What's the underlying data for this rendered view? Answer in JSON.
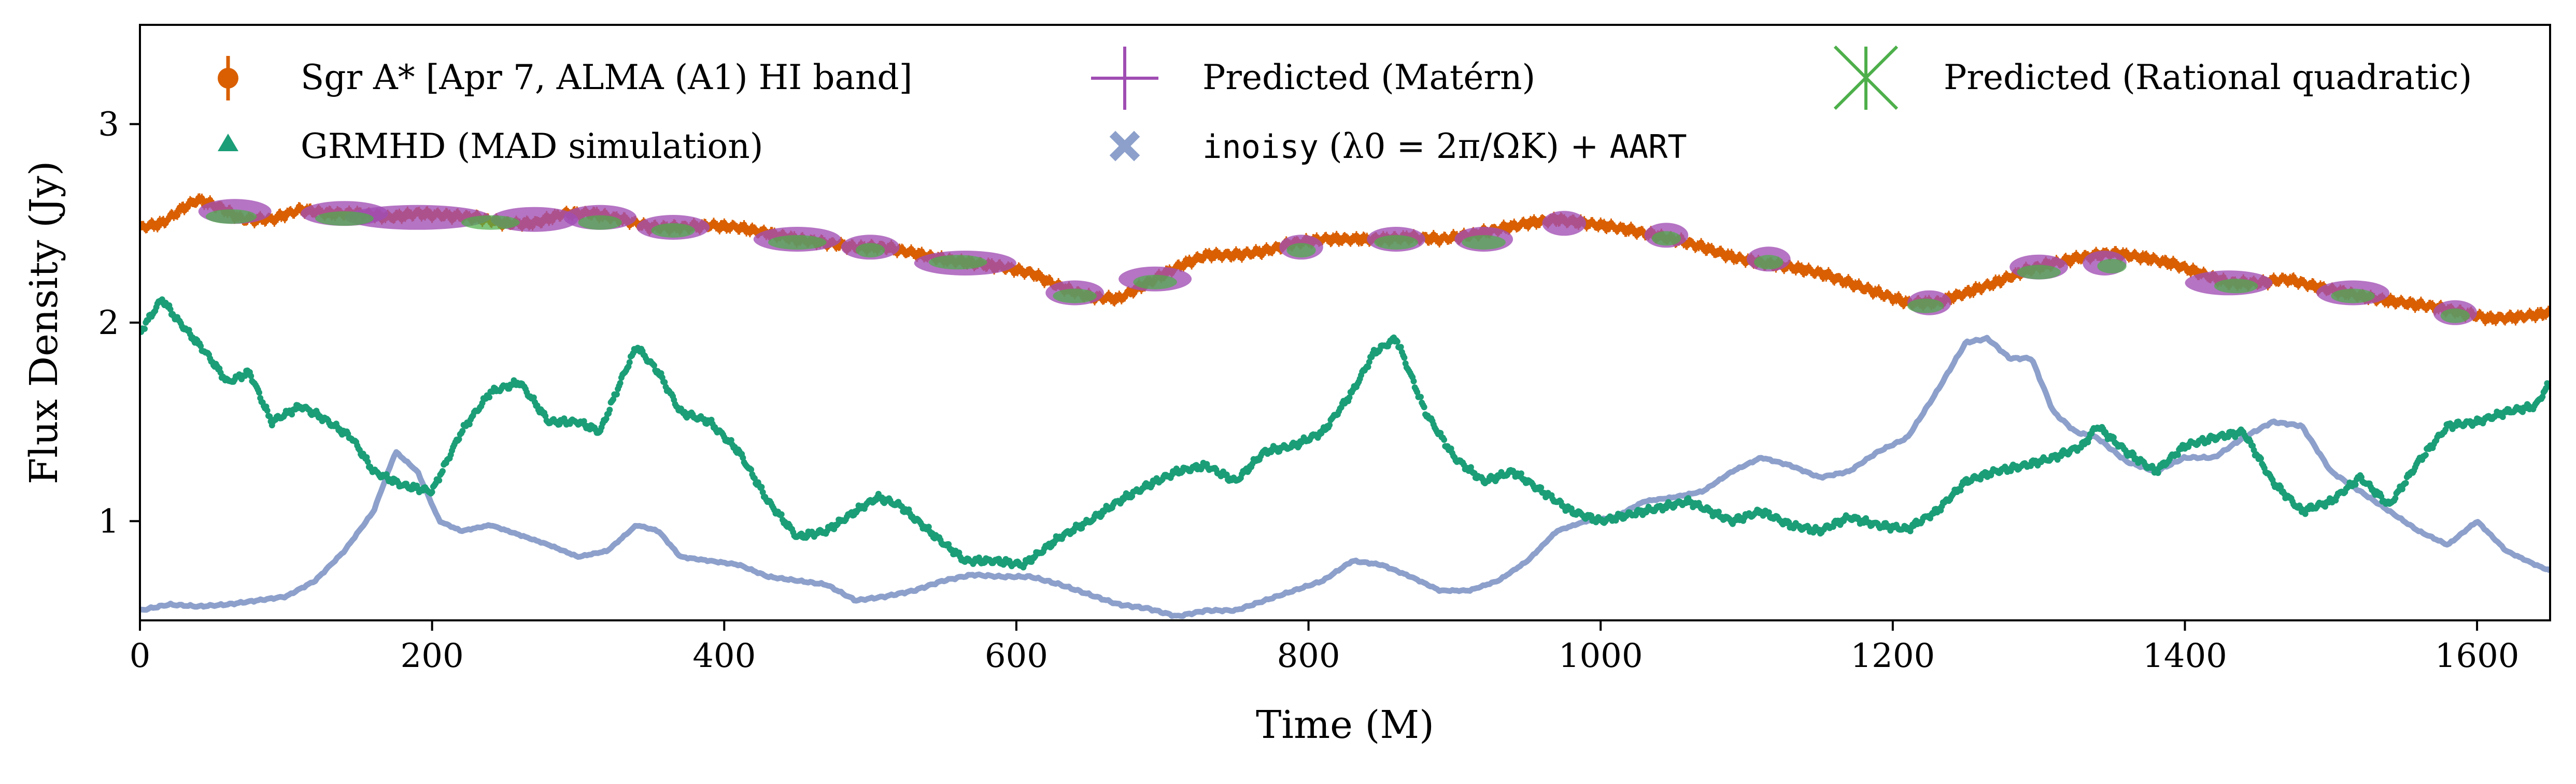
{
  "chart_data": {
    "type": "line",
    "xlabel": "Time (M)",
    "ylabel": "Flux Density (Jy)",
    "xlim": [
      0,
      1650
    ],
    "ylim": [
      0.5,
      3.5
    ],
    "xticks": [
      0,
      200,
      400,
      600,
      800,
      1000,
      1200,
      1400,
      1600
    ],
    "yticks": [
      1,
      2,
      3
    ],
    "grid": false,
    "legend_position": "top",
    "colors": {
      "sgra": "#d95f02",
      "grmhd": "#1b9e77",
      "inoisy": "#8da0cb",
      "matern": "#a04db3",
      "rq": "#4daf4a"
    },
    "series": [
      {
        "name": "Sgr A* [Apr 7, ALMA (A1) HI band]",
        "style": "errorbar-points",
        "x": [
          0,
          15,
          30,
          40,
          55,
          70,
          90,
          110,
          130,
          150,
          170,
          190,
          210,
          230,
          250,
          270,
          290,
          310,
          330,
          350,
          370,
          390,
          410,
          430,
          450,
          470,
          490,
          510,
          530,
          550,
          570,
          590,
          610,
          630,
          650,
          670,
          690,
          710,
          730,
          750,
          770,
          790,
          810,
          830,
          850,
          870,
          890,
          910,
          930,
          950,
          970,
          990,
          1010,
          1030,
          1050,
          1070,
          1090,
          1110,
          1130,
          1150,
          1170,
          1190,
          1210,
          1230,
          1250,
          1270,
          1290,
          1310,
          1330,
          1350,
          1370,
          1390,
          1410,
          1430,
          1450,
          1470,
          1490,
          1510,
          1530,
          1550,
          1570,
          1590,
          1610,
          1630,
          1650
        ],
        "y": [
          2.48,
          2.5,
          2.58,
          2.62,
          2.58,
          2.52,
          2.52,
          2.57,
          2.55,
          2.55,
          2.53,
          2.55,
          2.54,
          2.53,
          2.5,
          2.5,
          2.55,
          2.55,
          2.52,
          2.48,
          2.48,
          2.49,
          2.48,
          2.45,
          2.42,
          2.4,
          2.38,
          2.38,
          2.35,
          2.32,
          2.3,
          2.28,
          2.25,
          2.18,
          2.13,
          2.12,
          2.2,
          2.28,
          2.34,
          2.34,
          2.36,
          2.4,
          2.42,
          2.42,
          2.42,
          2.43,
          2.42,
          2.44,
          2.47,
          2.5,
          2.52,
          2.5,
          2.48,
          2.45,
          2.42,
          2.38,
          2.33,
          2.3,
          2.28,
          2.25,
          2.2,
          2.15,
          2.1,
          2.1,
          2.15,
          2.2,
          2.26,
          2.3,
          2.33,
          2.35,
          2.33,
          2.3,
          2.25,
          2.2,
          2.2,
          2.22,
          2.18,
          2.15,
          2.12,
          2.1,
          2.08,
          2.05,
          2.02,
          2.03,
          2.05
        ]
      },
      {
        "name": "GRMHD (MAD simulation)",
        "style": "triangle-points",
        "x": [
          0,
          15,
          25,
          45,
          60,
          75,
          90,
          110,
          125,
          145,
          160,
          180,
          200,
          220,
          240,
          260,
          280,
          300,
          315,
          330,
          340,
          355,
          370,
          390,
          410,
          430,
          450,
          470,
          490,
          505,
          520,
          545,
          565,
          585,
          605,
          630,
          650,
          670,
          690,
          710,
          730,
          750,
          770,
          790,
          810,
          830,
          845,
          860,
          880,
          900,
          920,
          940,
          960,
          980,
          1000,
          1030,
          1060,
          1090,
          1110,
          1130,
          1150,
          1170,
          1190,
          1210,
          1230,
          1250,
          1270,
          1290,
          1310,
          1330,
          1340,
          1360,
          1380,
          1400,
          1420,
          1440,
          1460,
          1480,
          1500,
          1520,
          1540,
          1560,
          1580,
          1600,
          1620,
          1640,
          1650
        ],
        "y": [
          1.95,
          2.12,
          2.02,
          1.85,
          1.7,
          1.75,
          1.5,
          1.58,
          1.52,
          1.42,
          1.25,
          1.18,
          1.15,
          1.45,
          1.65,
          1.7,
          1.5,
          1.5,
          1.45,
          1.72,
          1.88,
          1.75,
          1.55,
          1.5,
          1.35,
          1.1,
          0.92,
          0.95,
          1.05,
          1.12,
          1.08,
          0.92,
          0.8,
          0.8,
          0.78,
          0.92,
          1.0,
          1.1,
          1.18,
          1.25,
          1.28,
          1.2,
          1.35,
          1.38,
          1.45,
          1.65,
          1.85,
          1.92,
          1.55,
          1.32,
          1.2,
          1.25,
          1.15,
          1.05,
          1.0,
          1.05,
          1.1,
          1.0,
          1.05,
          0.98,
          0.95,
          1.02,
          0.98,
          0.96,
          1.05,
          1.2,
          1.25,
          1.28,
          1.32,
          1.38,
          1.48,
          1.35,
          1.25,
          1.38,
          1.42,
          1.45,
          1.2,
          1.05,
          1.1,
          1.22,
          1.08,
          1.3,
          1.48,
          1.5,
          1.55,
          1.58,
          1.7
        ]
      },
      {
        "name": "inoisy (λ0 = 2π/ΩK) + AART",
        "style": "thick-line",
        "x": [
          0,
          20,
          40,
          60,
          80,
          100,
          120,
          140,
          160,
          175,
          190,
          205,
          220,
          240,
          260,
          280,
          300,
          320,
          340,
          355,
          370,
          390,
          410,
          430,
          450,
          470,
          490,
          510,
          530,
          550,
          570,
          590,
          610,
          630,
          650,
          670,
          690,
          710,
          730,
          750,
          770,
          790,
          810,
          830,
          850,
          870,
          890,
          910,
          930,
          950,
          970,
          990,
          1010,
          1030,
          1050,
          1070,
          1090,
          1110,
          1130,
          1150,
          1170,
          1190,
          1210,
          1230,
          1250,
          1265,
          1280,
          1295,
          1310,
          1325,
          1340,
          1360,
          1380,
          1400,
          1420,
          1440,
          1460,
          1480,
          1500,
          1520,
          1540,
          1560,
          1580,
          1600,
          1620,
          1640,
          1650
        ],
        "y": [
          0.55,
          0.58,
          0.57,
          0.58,
          0.6,
          0.62,
          0.7,
          0.85,
          1.05,
          1.35,
          1.25,
          1.0,
          0.95,
          0.98,
          0.93,
          0.88,
          0.82,
          0.85,
          0.98,
          0.95,
          0.82,
          0.8,
          0.78,
          0.72,
          0.7,
          0.68,
          0.6,
          0.62,
          0.65,
          0.7,
          0.73,
          0.72,
          0.72,
          0.68,
          0.63,
          0.58,
          0.56,
          0.52,
          0.55,
          0.55,
          0.6,
          0.65,
          0.7,
          0.8,
          0.78,
          0.72,
          0.65,
          0.65,
          0.7,
          0.8,
          0.95,
          1.0,
          1.02,
          1.1,
          1.12,
          1.15,
          1.25,
          1.32,
          1.28,
          1.22,
          1.25,
          1.35,
          1.42,
          1.65,
          1.9,
          1.92,
          1.82,
          1.82,
          1.55,
          1.45,
          1.42,
          1.3,
          1.25,
          1.32,
          1.32,
          1.42,
          1.5,
          1.48,
          1.25,
          1.15,
          1.05,
          0.95,
          0.88,
          1.0,
          0.85,
          0.78,
          0.75
        ]
      },
      {
        "name": "Predicted (Matérn)",
        "style": "ellipse-intervals",
        "intervals": [
          [
            40,
            90,
            2.56
          ],
          [
            110,
            170,
            2.55
          ],
          [
            140,
            240,
            2.53
          ],
          [
            240,
            300,
            2.52
          ],
          [
            290,
            340,
            2.53
          ],
          [
            340,
            390,
            2.48
          ],
          [
            420,
            480,
            2.42
          ],
          [
            480,
            520,
            2.38
          ],
          [
            530,
            600,
            2.3
          ],
          [
            620,
            660,
            2.15
          ],
          [
            670,
            720,
            2.22
          ],
          [
            780,
            810,
            2.38
          ],
          [
            840,
            880,
            2.42
          ],
          [
            900,
            940,
            2.42
          ],
          [
            960,
            990,
            2.5
          ],
          [
            1030,
            1060,
            2.44
          ],
          [
            1100,
            1130,
            2.32
          ],
          [
            1210,
            1240,
            2.1
          ],
          [
            1280,
            1320,
            2.28
          ],
          [
            1330,
            1360,
            2.3
          ],
          [
            1400,
            1460,
            2.2
          ],
          [
            1490,
            1540,
            2.15
          ],
          [
            1570,
            1600,
            2.05
          ]
        ]
      },
      {
        "name": "Predicted (Rational quadratic)",
        "style": "ellipse-intervals",
        "intervals": [
          [
            45,
            80,
            2.55
          ],
          [
            120,
            160,
            2.54
          ],
          [
            220,
            260,
            2.52
          ],
          [
            300,
            330,
            2.52
          ],
          [
            350,
            380,
            2.48
          ],
          [
            430,
            470,
            2.42
          ],
          [
            490,
            510,
            2.38
          ],
          [
            540,
            580,
            2.32
          ],
          [
            625,
            655,
            2.15
          ],
          [
            680,
            710,
            2.22
          ],
          [
            785,
            805,
            2.38
          ],
          [
            845,
            875,
            2.42
          ],
          [
            905,
            935,
            2.42
          ],
          [
            1035,
            1055,
            2.44
          ],
          [
            1105,
            1125,
            2.32
          ],
          [
            1210,
            1235,
            2.1
          ],
          [
            1285,
            1315,
            2.27
          ],
          [
            1340,
            1360,
            2.3
          ],
          [
            1420,
            1450,
            2.2
          ],
          [
            1500,
            1530,
            2.15
          ],
          [
            1575,
            1595,
            2.05
          ]
        ]
      }
    ],
    "legend": [
      {
        "key": "sgra",
        "label": "Sgr A* [Apr 7, ALMA (A1) HI band]"
      },
      {
        "key": "grmhd",
        "label": "GRMHD (MAD simulation)"
      },
      {
        "key": "matern",
        "label": "Predicted (Matérn)"
      },
      {
        "key": "inoisy",
        "label_mono": "inoisy",
        "label_mid": "(λ0 = 2π/ΩK) + ",
        "label_mono2": "AART"
      },
      {
        "key": "rq",
        "label": "Predicted (Rational quadratic)"
      }
    ]
  }
}
